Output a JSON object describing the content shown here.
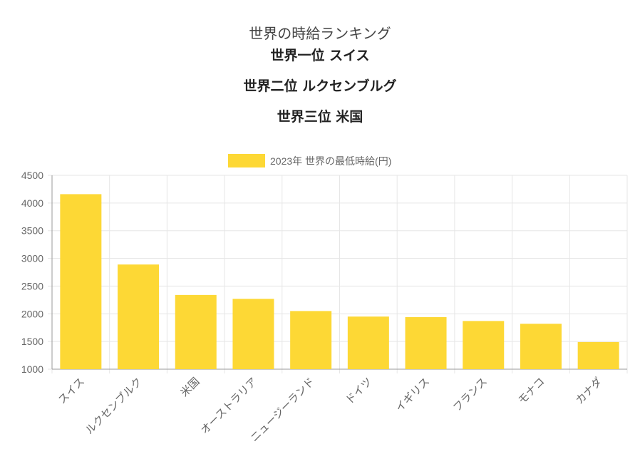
{
  "header": {
    "title": "世界の時給ランキング",
    "rankings": [
      "世界一位 スイス",
      "世界二位 ルクセンブルグ",
      "世界三位 米国"
    ]
  },
  "chart_data": {
    "type": "bar",
    "categories": [
      "スイス",
      "ルクセンブルク",
      "米国",
      "オーストラリア",
      "ニュージーランド",
      "ドイツ",
      "イギリス",
      "フランス",
      "モナコ",
      "カナダ"
    ],
    "series": [
      {
        "name": "2023年  世界の最低時給(円)",
        "values": [
          4160,
          2890,
          2340,
          2270,
          2050,
          1950,
          1940,
          1870,
          1820,
          1490
        ]
      }
    ],
    "ylim": [
      1000,
      4500
    ],
    "yticks": [
      1000,
      1500,
      2000,
      2500,
      3000,
      3500,
      4000,
      4500
    ],
    "grid": true,
    "legend_position": "top",
    "colors": {
      "bar": "#fdd835",
      "grid": "#e6e6e6",
      "axis": "#999999",
      "text": "#666666"
    }
  }
}
